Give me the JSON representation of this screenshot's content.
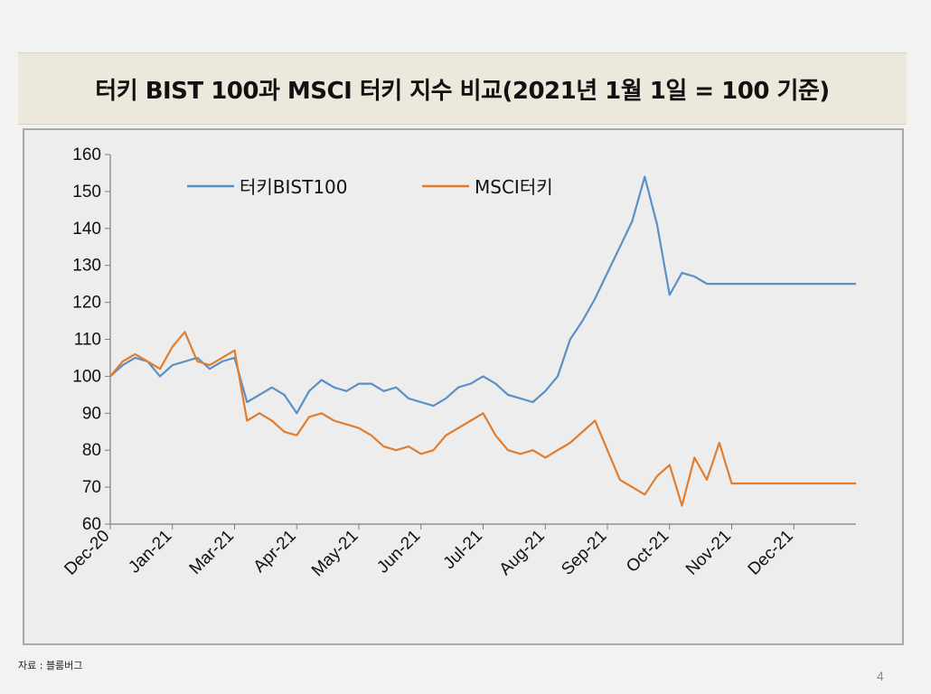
{
  "title": "터키 BIST 100과 MSCI 터키 지수 비교(2021년 1월 1일 = 100 기준)",
  "source": "자료 : 블룸버그",
  "page_number": "4",
  "chart_data": {
    "type": "line",
    "title": "",
    "xlabel": "",
    "ylabel": "",
    "ylim": [
      60,
      160
    ],
    "yticks": [
      "160",
      "150",
      "140",
      "130",
      "120",
      "110",
      "100",
      "90",
      "80",
      "70",
      "60"
    ],
    "xticks": [
      "Dec-20",
      "Jan-21",
      "Mar-21",
      "Apr-21",
      "May-21",
      "Jun-21",
      "Jul-21",
      "Aug-21",
      "Sep-21",
      "Oct-21",
      "Nov-21",
      "Dec-21"
    ],
    "legend_position": "top-left",
    "grid": false,
    "series": [
      {
        "name": "터키BIST100",
        "color": "#5b8fc7",
        "x": [
          0,
          0.2,
          0.4,
          0.6,
          0.8,
          1.0,
          1.2,
          1.4,
          1.6,
          1.8,
          2.0,
          2.2,
          2.4,
          2.6,
          2.8,
          3.0,
          3.2,
          3.4,
          3.6,
          3.8,
          4.0,
          4.2,
          4.4,
          4.6,
          4.8,
          5.0,
          5.2,
          5.4,
          5.6,
          5.8,
          6.0,
          6.2,
          6.4,
          6.6,
          6.8,
          7.0,
          7.2,
          7.4,
          7.6,
          7.8,
          8.0,
          8.2,
          8.4,
          8.6,
          8.8,
          9.0,
          9.2,
          9.4,
          9.6,
          9.8,
          10.0,
          10.2,
          10.4,
          10.6,
          10.8,
          11.0,
          11.2,
          11.4,
          11.5,
          11.6,
          11.7,
          11.8,
          11.9,
          12.0
        ],
        "values": [
          100,
          103,
          105,
          104,
          100,
          103,
          104,
          105,
          102,
          104,
          105,
          93,
          95,
          97,
          95,
          90,
          96,
          99,
          97,
          96,
          98,
          98,
          96,
          97,
          94,
          93,
          92,
          94,
          97,
          98,
          100,
          98,
          95,
          94,
          93,
          96,
          100,
          110,
          115,
          121,
          128,
          135,
          142,
          154,
          141,
          122,
          128,
          127,
          125,
          125,
          125,
          125,
          125,
          125,
          125,
          125,
          125,
          125,
          125,
          125,
          125,
          125,
          125,
          125
        ]
      },
      {
        "name": "MSCI터키",
        "color": "#e07d2e",
        "x": [
          0,
          0.2,
          0.4,
          0.6,
          0.8,
          1.0,
          1.2,
          1.4,
          1.6,
          1.8,
          2.0,
          2.2,
          2.4,
          2.6,
          2.8,
          3.0,
          3.2,
          3.4,
          3.6,
          3.8,
          4.0,
          4.2,
          4.4,
          4.6,
          4.8,
          5.0,
          5.2,
          5.4,
          5.6,
          5.8,
          6.0,
          6.2,
          6.4,
          6.6,
          6.8,
          7.0,
          7.2,
          7.4,
          7.6,
          7.8,
          8.0,
          8.2,
          8.4,
          8.6,
          8.8,
          9.0,
          9.2,
          9.4,
          9.6,
          9.8,
          10.0,
          10.2,
          10.4,
          10.6,
          10.8,
          11.0,
          11.2,
          11.4,
          11.5,
          11.6,
          11.7,
          11.8,
          11.9,
          12.0
        ],
        "values": [
          100,
          104,
          106,
          104,
          102,
          108,
          112,
          104,
          103,
          105,
          107,
          88,
          90,
          88,
          85,
          84,
          89,
          90,
          88,
          87,
          86,
          84,
          81,
          80,
          81,
          79,
          80,
          84,
          86,
          88,
          90,
          84,
          80,
          79,
          80,
          78,
          80,
          82,
          85,
          88,
          80,
          72,
          70,
          68,
          73,
          76,
          65,
          78,
          72,
          82,
          71,
          71,
          71,
          71,
          71,
          71,
          71,
          71,
          71,
          71,
          71,
          71,
          71,
          71
        ]
      }
    ]
  }
}
